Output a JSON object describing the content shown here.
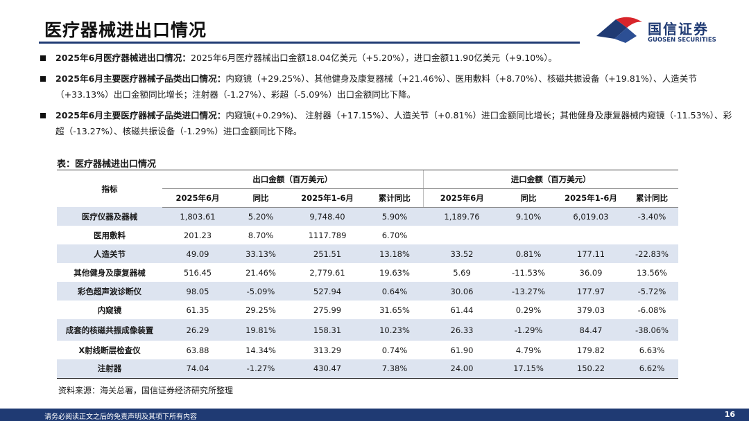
{
  "header": {
    "title": "医疗器械进出口情况",
    "logo_cn": "国信证券",
    "logo_en": "GUOSEN SECURITIES",
    "brand_color": "#1f3a73",
    "accent_color": "#d8252b"
  },
  "bullets": [
    {
      "label": "2025年6月医疗器械进出口情况：",
      "text": "2025年6月医疗器械出口金额18.04亿美元（+5.20%），进口金额11.90亿美元（+9.10%）。"
    },
    {
      "label": "2025年6月主要医疗器械子品类出口情况：",
      "text": "内窥镜（+29.25%）、其他健身及康复器械（+21.46%）、医用敷料（+8.70%）、核磁共振设备（+19.81%）、人造关节（+33.13%）出口金额同比增长；注射器（-1.27%）、彩超（-5.09%）出口金额同比下降。"
    },
    {
      "label": "2025年6月主要医疗器械子品类进口情况：",
      "text": "内窥镜(+0.29%)、 注射器（+17.15%）、人造关节（+0.81%）进口金额同比增长；其他健身及康复器械内窥镜（-11.53%）、彩超（-13.27%）、核磁共振设备（-1.29%）进口金额同比下降。"
    }
  ],
  "table": {
    "title": "表：医疗器械进出口情况",
    "indicator_header": "指标",
    "export_group": "出口金额（百万美元）",
    "import_group": "进口金额（百万美元）",
    "columns": [
      "2025年6月",
      "同比",
      "2025年1-6月",
      "累计同比",
      "2025年6月",
      "同比",
      "2025年1-6月",
      "累计同比"
    ],
    "rows": [
      {
        "name": "医疗仪器及器械",
        "values": [
          "1,803.61",
          "5.20%",
          "9,748.40",
          "5.90%",
          "1,189.76",
          "9.10%",
          "6,019.03",
          "-3.40%"
        ]
      },
      {
        "name": "医用敷料",
        "values": [
          "201.23",
          "8.70%",
          "1117.789",
          "6.70%",
          "",
          "",
          "",
          ""
        ]
      },
      {
        "name": "人造关节",
        "values": [
          "49.09",
          "33.13%",
          "251.51",
          "13.18%",
          "33.52",
          "0.81%",
          "177.11",
          "-22.83%"
        ]
      },
      {
        "name": "其他健身及康复器械",
        "values": [
          "516.45",
          "21.46%",
          "2,779.61",
          "19.63%",
          "5.69",
          "-11.53%",
          "36.09",
          "13.56%"
        ]
      },
      {
        "name": "彩色超声波诊断仪",
        "values": [
          "98.05",
          "-5.09%",
          "527.94",
          "0.64%",
          "30.06",
          "-13.27%",
          "177.97",
          "-5.72%"
        ]
      },
      {
        "name": "内窥镜",
        "values": [
          "61.35",
          "29.25%",
          "275.99",
          "31.65%",
          "61.44",
          "0.29%",
          "379.03",
          "-6.08%"
        ]
      },
      {
        "name": "成套的核磁共振成像装置",
        "values": [
          "26.29",
          "19.81%",
          "158.31",
          "10.23%",
          "26.33",
          "-1.29%",
          "84.47",
          "-38.06%"
        ]
      },
      {
        "name": "X射线断层检查仪",
        "values": [
          "63.88",
          "14.34%",
          "313.29",
          "0.74%",
          "61.90",
          "4.79%",
          "179.82",
          "6.63%"
        ]
      },
      {
        "name": "注射器",
        "values": [
          "74.04",
          "-1.27%",
          "430.47",
          "7.38%",
          "24.00",
          "17.15%",
          "150.22",
          "6.62%"
        ]
      }
    ]
  },
  "source": "资料来源：海关总署，国信证券经济研究所整理",
  "footer": {
    "disclaimer": "请务必阅读正文之后的免责声明及其项下所有内容",
    "page_number": "16"
  }
}
